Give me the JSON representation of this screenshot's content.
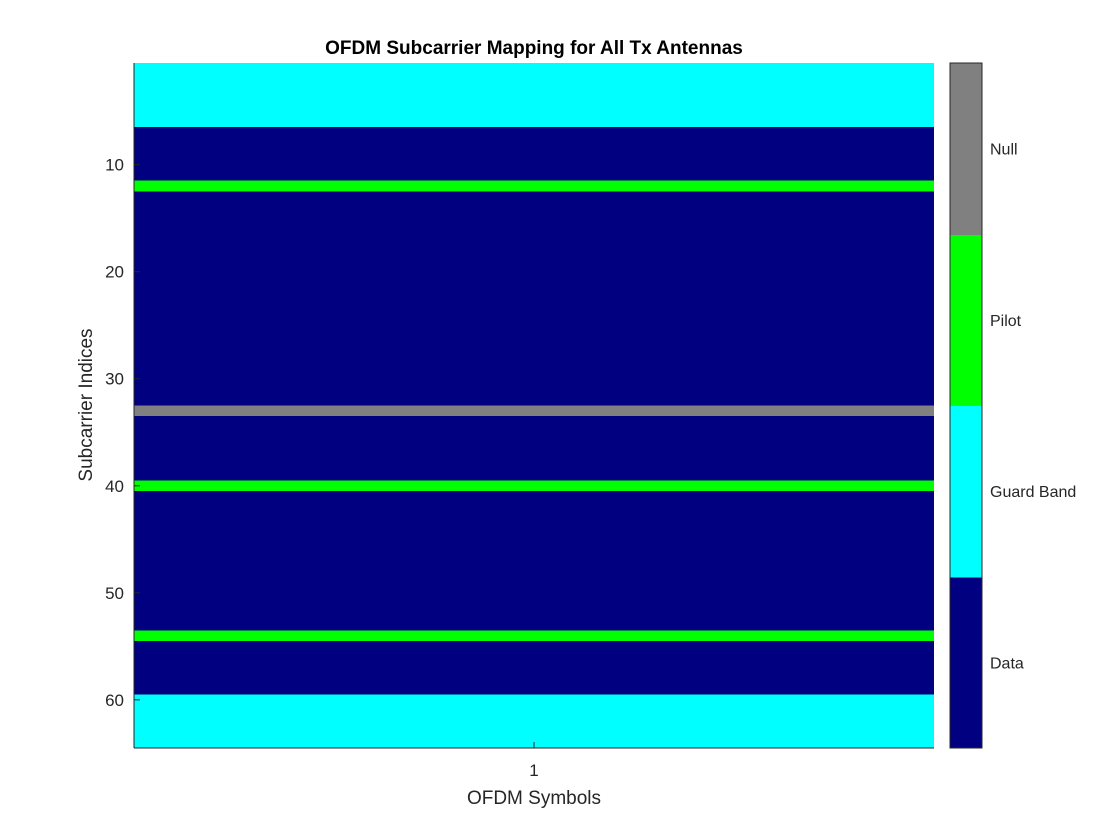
{
  "chart_data": {
    "type": "heatmap",
    "title": "OFDM Subcarrier Mapping for All Tx Antennas",
    "xlabel": "OFDM Symbols",
    "ylabel": "Subcarrier Indices",
    "x_ticks": [
      "1"
    ],
    "y_ticks": [
      10,
      20,
      30,
      40,
      50,
      60
    ],
    "ylim": [
      0.5,
      64.5
    ],
    "y_direction": "reverse",
    "columns": 1,
    "rows": 64,
    "categories": [
      {
        "code": 0,
        "label": "Data",
        "color": "#000080"
      },
      {
        "code": 1,
        "label": "Guard Band",
        "color": "#00FFFF"
      },
      {
        "code": 2,
        "label": "Pilot",
        "color": "#00FF00"
      },
      {
        "code": 3,
        "label": "Null",
        "color": "#808080"
      }
    ],
    "segments": [
      {
        "from": 1,
        "to": 6,
        "code": 1
      },
      {
        "from": 7,
        "to": 11,
        "code": 0
      },
      {
        "from": 12,
        "to": 12,
        "code": 2
      },
      {
        "from": 13,
        "to": 32,
        "code": 0
      },
      {
        "from": 33,
        "to": 33,
        "code": 3
      },
      {
        "from": 34,
        "to": 39,
        "code": 0
      },
      {
        "from": 40,
        "to": 40,
        "code": 2
      },
      {
        "from": 41,
        "to": 53,
        "code": 0
      },
      {
        "from": 54,
        "to": 54,
        "code": 2
      },
      {
        "from": 55,
        "to": 59,
        "code": 0
      },
      {
        "from": 60,
        "to": 64,
        "code": 1
      }
    ],
    "colorbar": {
      "labels": [
        "Data",
        "Guard Band",
        "Pilot",
        "Null"
      ],
      "location": "right"
    },
    "grid": false
  }
}
